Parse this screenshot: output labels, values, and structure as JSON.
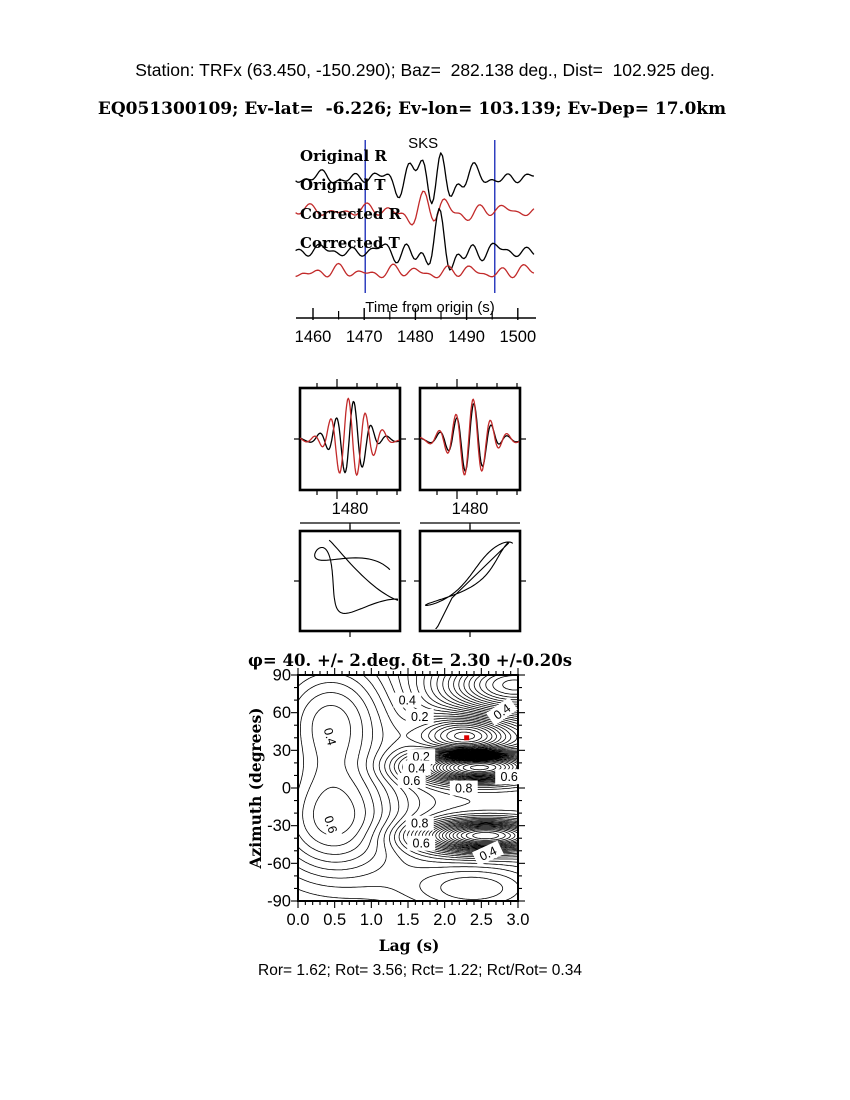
{
  "header": {
    "line1": "Station: TRFx (63.450, -150.290); Baz=  282.138 deg., Dist=  102.925 deg.",
    "line2": "EQ051300109; Ev-lat=  -6.226; Ev-lon= 103.139; Ev-Dep= 17.0km"
  },
  "footer": {
    "text": "Ror= 1.62; Rot= 3.56; Rct= 1.22; Rct/Rot= 0.34",
    "Ror": 1.62,
    "Rot": 3.56,
    "Rct": 1.22,
    "Rct_over_Rot": 0.34
  },
  "colors": {
    "radial_trace": "#000000",
    "transverse_trace": "#c22a2a",
    "phase_label": "#dd2222",
    "window_line": "#2233bb",
    "best_fit_dot": "#dd0000",
    "contour_line": "#000000"
  },
  "chart_data": [
    {
      "id": "waveform-panel",
      "type": "line",
      "phase_label": "SKS",
      "phase_label_time": 1481.5,
      "traces": [
        {
          "label": "Original R",
          "color_key": "radial_trace"
        },
        {
          "label": "Original T",
          "color_key": "transverse_trace"
        },
        {
          "label": "Corrected R",
          "color_key": "radial_trace"
        },
        {
          "label": "Corrected T",
          "color_key": "transverse_trace"
        }
      ],
      "xlabel": "Time from origin (s)",
      "xlim": [
        1456.5,
        1503.5
      ],
      "x_ticks": [
        "1460",
        "1470",
        "1480",
        "1490",
        "1500"
      ],
      "x_minor_step": 5,
      "window_lines": [
        1470.2,
        1495.5
      ]
    },
    {
      "id": "window-original",
      "type": "line",
      "x_ticks": [
        "1480"
      ],
      "xlim": [
        1468,
        1492
      ],
      "trace_colors": [
        "radial_trace",
        "transverse_trace"
      ]
    },
    {
      "id": "window-corrected",
      "type": "line",
      "x_ticks": [
        "1480"
      ],
      "xlim": [
        1468,
        1492
      ],
      "trace_colors": [
        "radial_trace",
        "transverse_trace"
      ]
    },
    {
      "id": "particle-motion-original",
      "type": "line"
    },
    {
      "id": "particle-motion-corrected",
      "type": "line"
    },
    {
      "id": "splitting-misfit-contour",
      "type": "heatmap",
      "title": "φ= 40. +/- 2.deg. δt= 2.30 +/-0.20s",
      "phi_deg": 40,
      "phi_err_deg": 2,
      "dt_s": 2.3,
      "dt_err_s": 0.2,
      "xlabel": "Lag (s)",
      "ylabel": "Azimuth (degrees)",
      "xlim": [
        0,
        3
      ],
      "ylim": [
        -90,
        90
      ],
      "x_ticks": [
        "0.0",
        "0.5",
        "1.0",
        "1.5",
        "2.0",
        "2.5",
        "3.0"
      ],
      "y_ticks": [
        "90",
        "60",
        "30",
        "0",
        "-30",
        "-60",
        "-90"
      ],
      "x_minor_step": 0.1,
      "y_minor_step": 10,
      "grid": false,
      "legend": "none",
      "best_fit": {
        "lag_s": 2.3,
        "azimuth_deg": 40
      },
      "contour_labels": [
        {
          "v": "0.4",
          "t": 1.49,
          "a": 70,
          "rot": 0
        },
        {
          "v": "0.2",
          "t": 1.66,
          "a": 57,
          "rot": 0
        },
        {
          "v": "0.4",
          "t": 2.78,
          "a": 61,
          "rot": -35
        },
        {
          "v": "0.4",
          "t": 0.44,
          "a": 41,
          "rot": 75
        },
        {
          "v": "0.2",
          "t": 1.68,
          "a": 25,
          "rot": 0
        },
        {
          "v": "0.4",
          "t": 1.62,
          "a": 16,
          "rot": 0
        },
        {
          "v": "0.6",
          "t": 1.55,
          "a": 6,
          "rot": 0
        },
        {
          "v": "0.6",
          "t": 2.88,
          "a": 9,
          "rot": 0
        },
        {
          "v": "0.8",
          "t": 2.26,
          "a": 0,
          "rot": 0
        },
        {
          "v": "0.6",
          "t": 0.45,
          "a": -29,
          "rot": 72
        },
        {
          "v": "0.8",
          "t": 1.66,
          "a": -28,
          "rot": 0
        },
        {
          "v": "0.6",
          "t": 1.68,
          "a": -44,
          "rot": 0
        },
        {
          "v": "0.4",
          "t": 2.59,
          "a": -52,
          "rot": -25
        }
      ]
    }
  ]
}
